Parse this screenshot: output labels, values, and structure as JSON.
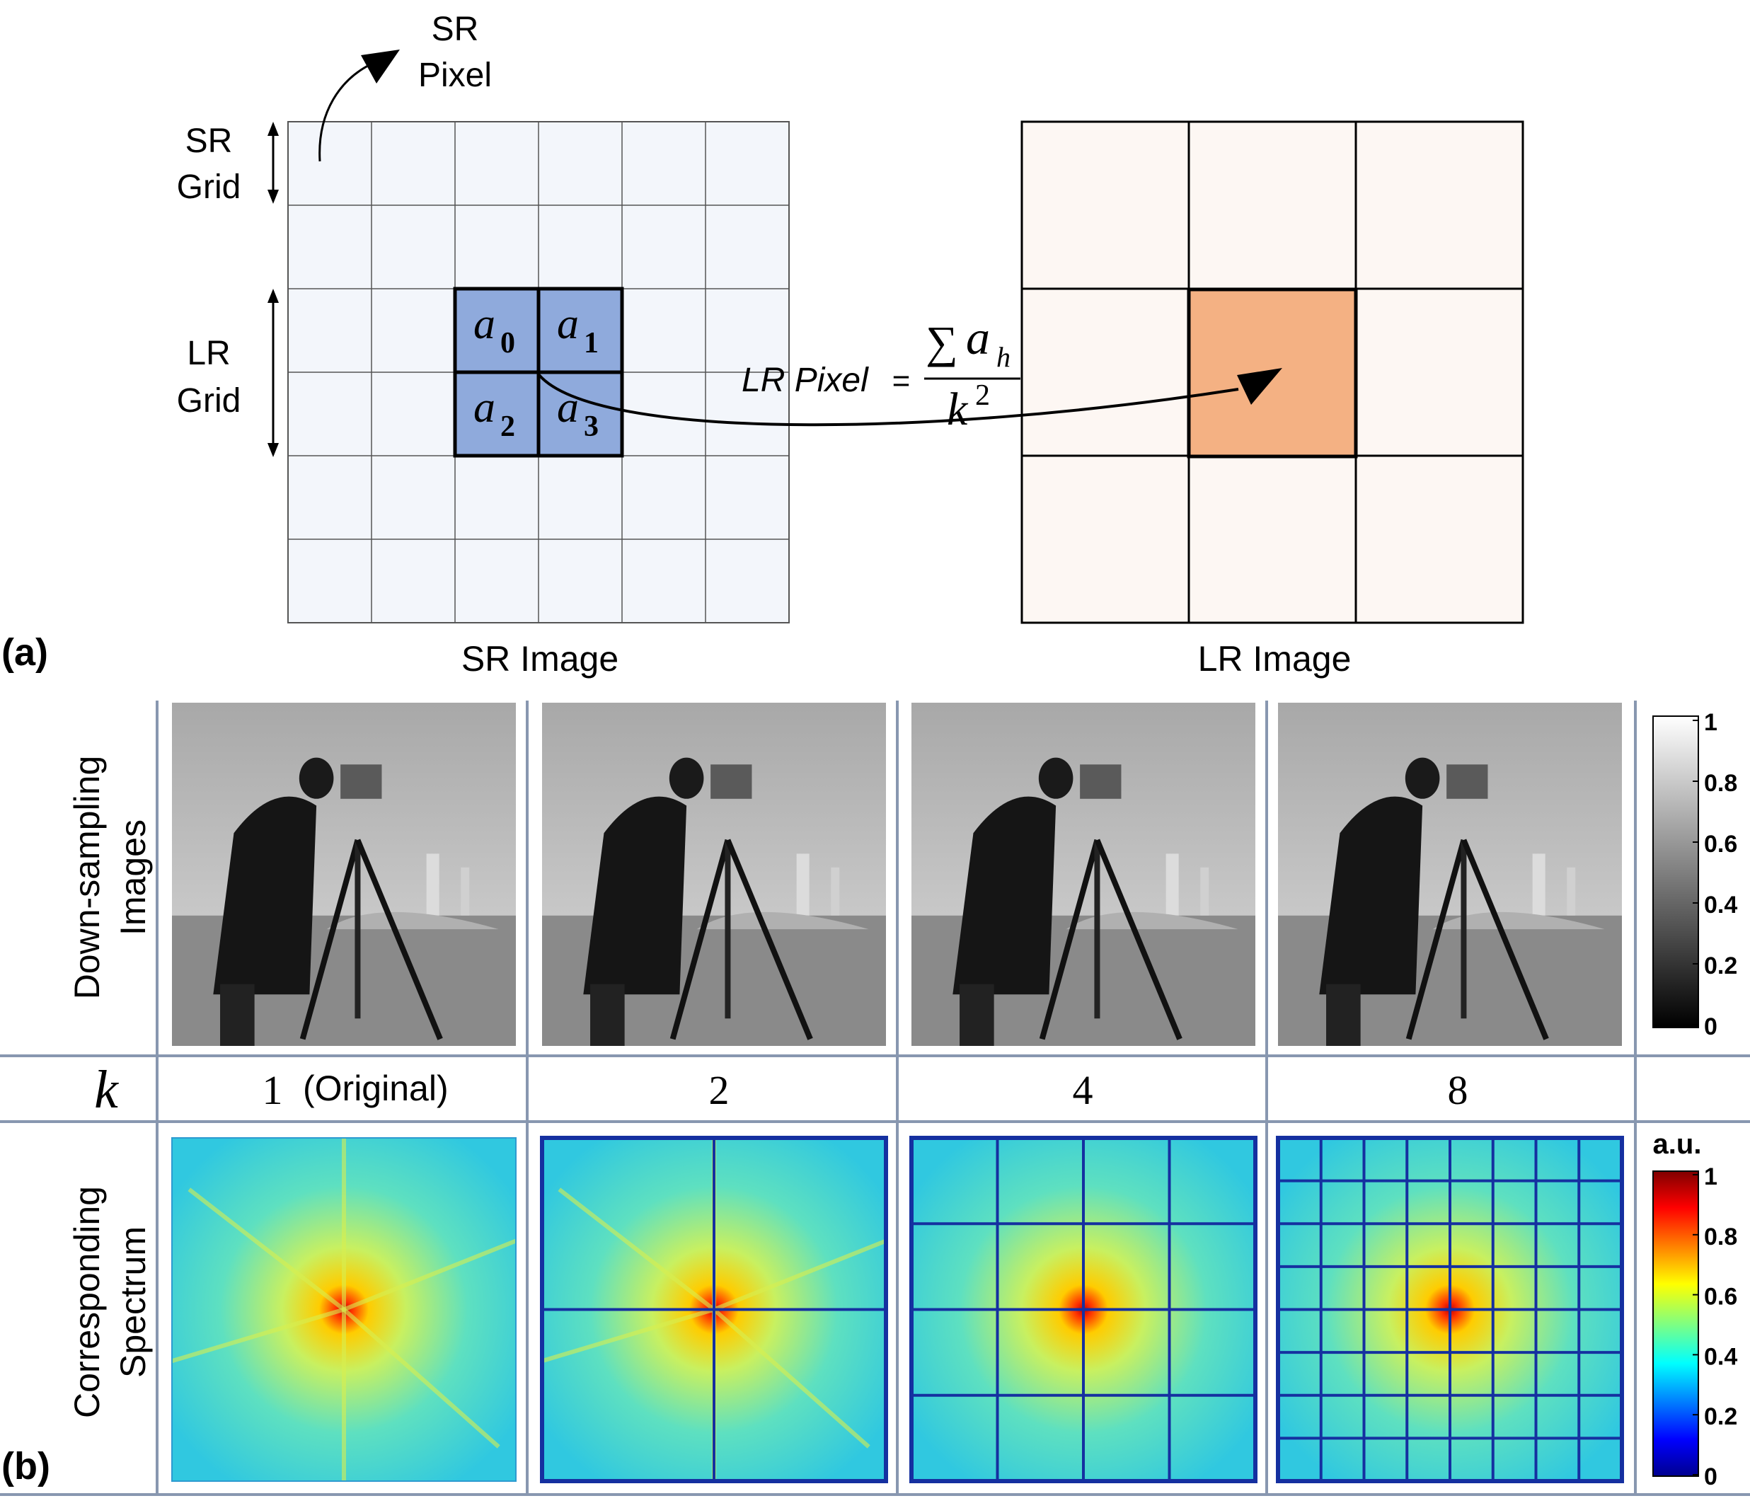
{
  "panel_a": {
    "label": "(a)",
    "sr_pixel_label": [
      "SR",
      "Pixel"
    ],
    "sr_grid_label": [
      "SR",
      "Grid"
    ],
    "lr_grid_label": [
      "LR",
      "Grid"
    ],
    "cells": [
      {
        "var": "a",
        "sub": "0"
      },
      {
        "var": "a",
        "sub": "1"
      },
      {
        "var": "a",
        "sub": "2"
      },
      {
        "var": "a",
        "sub": "3"
      }
    ],
    "formula_left": "LR Pixel",
    "formula_eq": "=",
    "formula_sum": "∑",
    "formula_num_var": "a",
    "formula_num_sub": "h",
    "formula_den_var": "k",
    "formula_den_exp": "2",
    "sr_caption": "SR Image",
    "lr_caption": "LR Image",
    "colors": {
      "sr_grid_fill": "#f3f6fb",
      "sr_block_fill": "#8faadc",
      "lr_grid_fill": "#fdf7f3",
      "lr_pixel_fill": "#f4b183"
    }
  },
  "panel_b": {
    "label": "(b)",
    "row1_label": [
      "Down-sampling",
      "Images"
    ],
    "k_label": "k",
    "k_values": [
      "1",
      "2",
      "4",
      "8"
    ],
    "k_first_note": "(Original)",
    "row3_label": [
      "Corresponding",
      "Spectrum"
    ],
    "gray_colorbar": {
      "ticks": [
        "1",
        "0.8",
        "0.6",
        "0.4",
        "0.2",
        "0"
      ]
    },
    "jet_colorbar": {
      "title": "a.u.",
      "ticks": [
        "1",
        "0.8",
        "0.6",
        "0.4",
        "0.2",
        "0"
      ]
    }
  }
}
